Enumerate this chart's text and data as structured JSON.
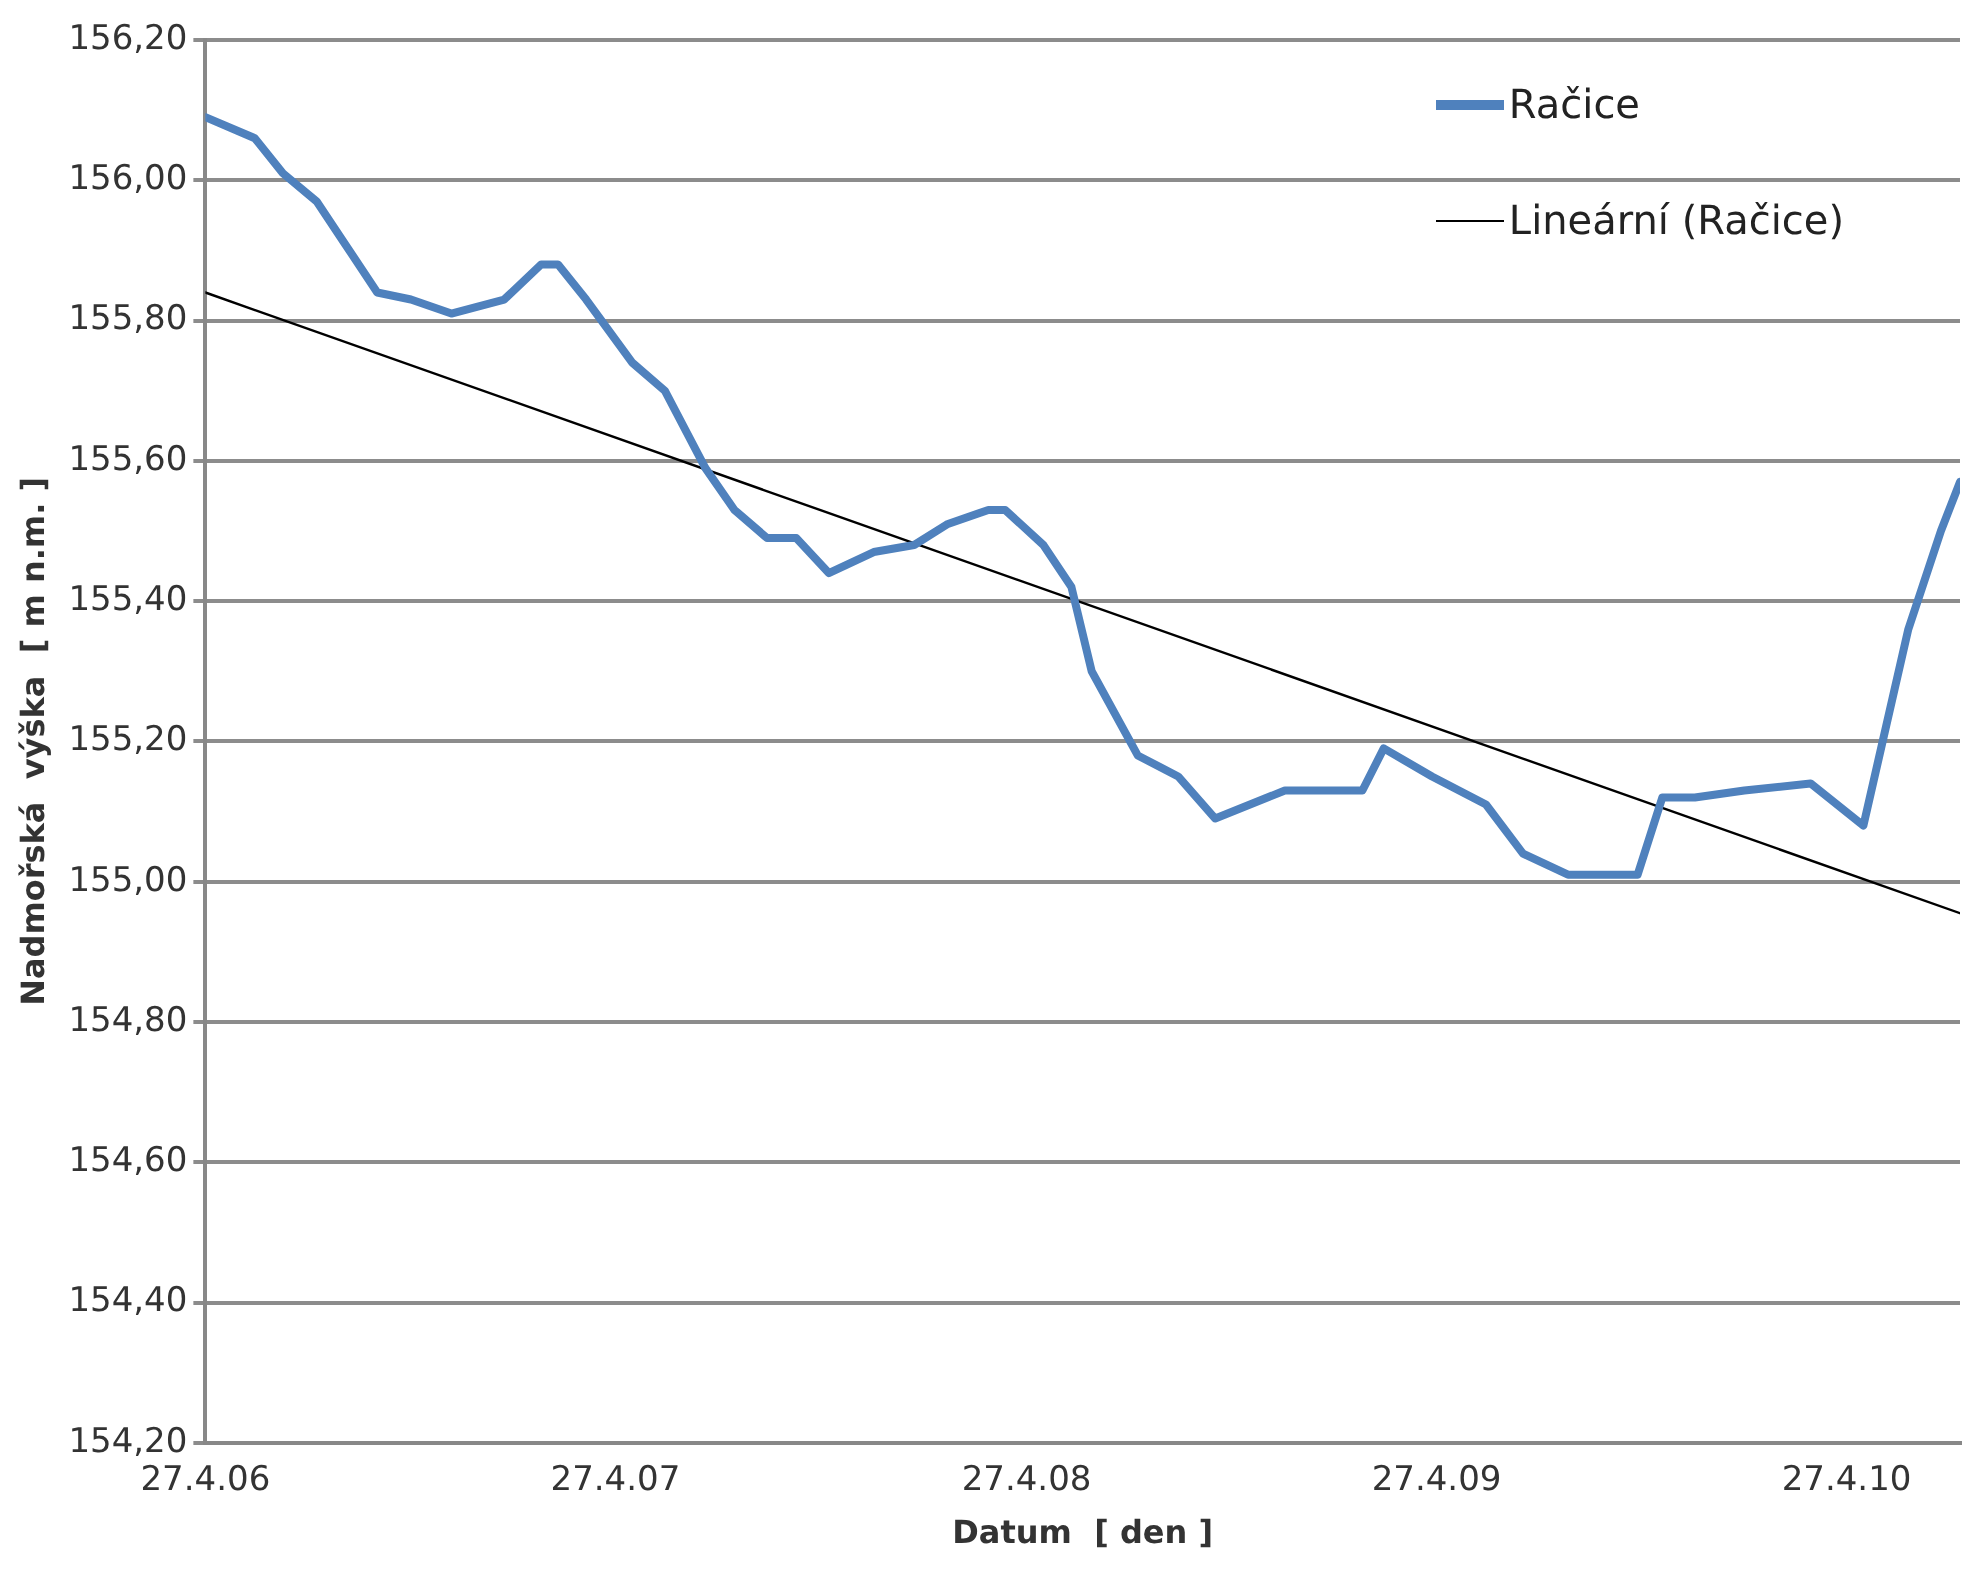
{
  "chart_data": {
    "type": "line",
    "xlabel": "Datum  [ den ]",
    "ylabel": "Nadmořská  výška  [ m n.m. ]",
    "xlim": [
      "2006-04-27",
      "2010-08-06"
    ],
    "xticks": [
      {
        "value": "2006-04-27",
        "label": "27.4.06"
      },
      {
        "value": "2007-04-27",
        "label": "27.4.07"
      },
      {
        "value": "2008-04-27",
        "label": "27.4.08"
      },
      {
        "value": "2009-04-27",
        "label": "27.4.09"
      },
      {
        "value": "2010-04-27",
        "label": "27.4.10"
      }
    ],
    "ylim": [
      154.2,
      156.2
    ],
    "yticks": [
      {
        "value": 154.2,
        "label": "154,20"
      },
      {
        "value": 154.4,
        "label": "154,40"
      },
      {
        "value": 154.6,
        "label": "154,60"
      },
      {
        "value": 154.8,
        "label": "154,80"
      },
      {
        "value": 155.0,
        "label": "155,00"
      },
      {
        "value": 155.2,
        "label": "155,20"
      },
      {
        "value": 155.4,
        "label": "155,40"
      },
      {
        "value": 155.6,
        "label": "155,60"
      },
      {
        "value": 155.8,
        "label": "155,80"
      },
      {
        "value": 156.0,
        "label": "156,00"
      },
      {
        "value": 156.2,
        "label": "156,20"
      }
    ],
    "grid": "y",
    "legend": "top right",
    "marker": "none",
    "line_style": "solid",
    "series": [
      {
        "name": "Račice",
        "color": "#4f81bd",
        "x": [
          "2006-04-27",
          "2006-06-10",
          "2006-07-05",
          "2006-08-04",
          "2006-08-29",
          "2006-09-27",
          "2006-10-27",
          "2006-12-02",
          "2007-01-18",
          "2007-02-20",
          "2007-03-07",
          "2007-04-01",
          "2007-05-12",
          "2007-06-10",
          "2007-07-16",
          "2007-08-11",
          "2007-09-09",
          "2007-10-05",
          "2007-11-03",
          "2007-12-13",
          "2008-01-18",
          "2008-02-17",
          "2008-03-24",
          "2008-04-08",
          "2008-05-12",
          "2008-06-06",
          "2008-06-24",
          "2008-08-04",
          "2008-09-09",
          "2008-10-12",
          "2008-12-13",
          "2009-02-20",
          "2009-03-11",
          "2009-04-23",
          "2009-06-10",
          "2009-07-13",
          "2009-08-22",
          "2009-10-23",
          "2009-11-14",
          "2009-12-13",
          "2010-01-26",
          "2010-03-26",
          "2010-05-12",
          "2010-06-21",
          "2010-07-20",
          "2010-08-06"
        ],
        "values": [
          156.09,
          156.06,
          156.01,
          155.97,
          155.91,
          155.84,
          155.83,
          155.81,
          155.83,
          155.88,
          155.88,
          155.83,
          155.74,
          155.7,
          155.59,
          155.53,
          155.49,
          155.49,
          155.44,
          155.47,
          155.48,
          155.51,
          155.53,
          155.53,
          155.48,
          155.42,
          155.3,
          155.18,
          155.15,
          155.09,
          155.13,
          155.13,
          155.19,
          155.15,
          155.11,
          155.04,
          155.01,
          155.01,
          155.12,
          155.12,
          155.13,
          155.14,
          155.08,
          155.36,
          155.5,
          155.57
        ]
      },
      {
        "name": "Lineární (Račice)",
        "color": "#000000",
        "x": [
          "2006-04-27",
          "2010-08-06"
        ],
        "values": [
          155.84,
          154.955
        ]
      }
    ]
  }
}
